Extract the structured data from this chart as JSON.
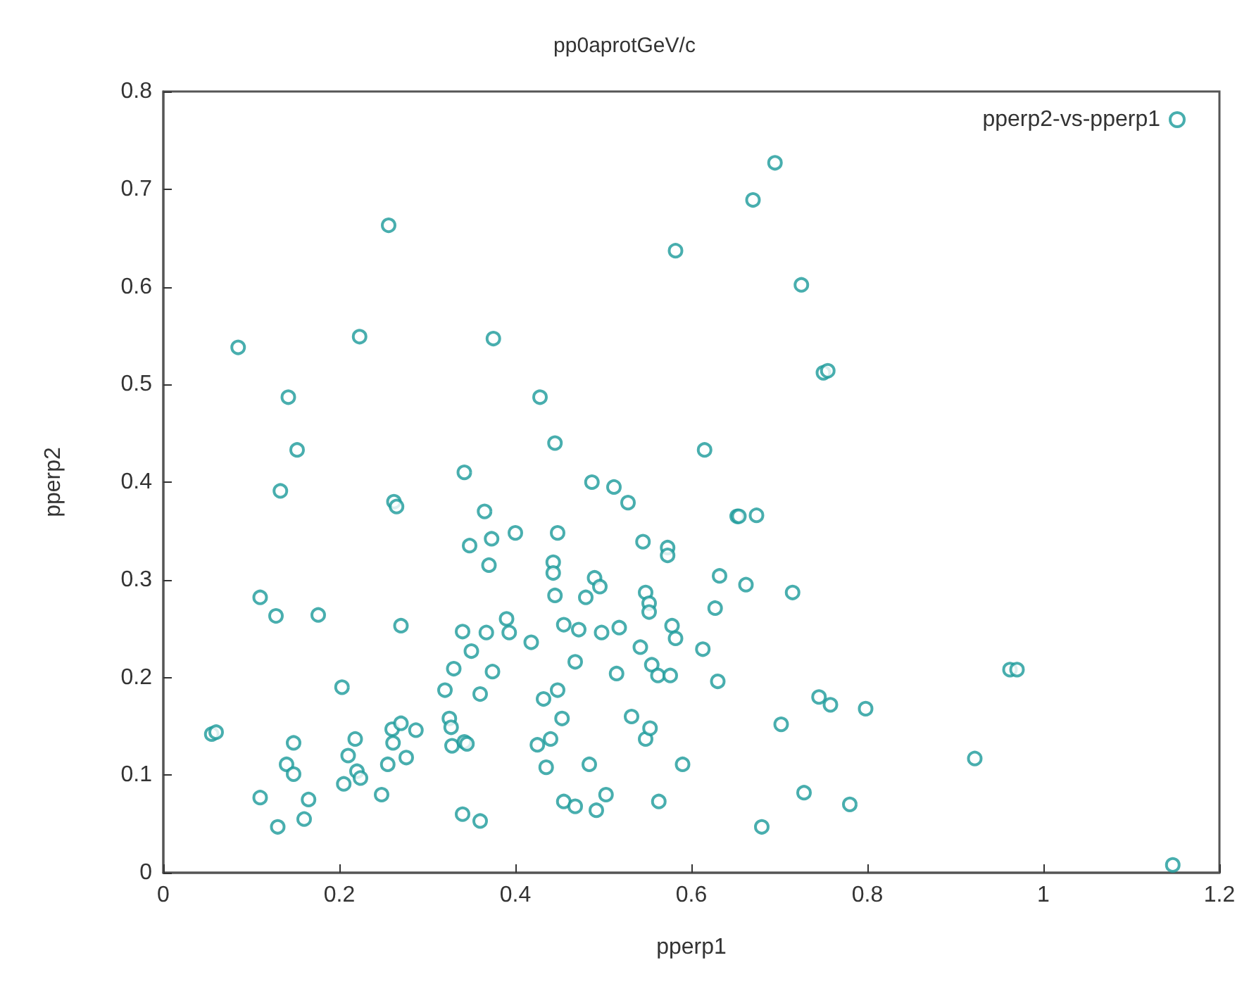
{
  "chart_data": {
    "type": "scatter",
    "title": "pp0aprotGeV/c",
    "xlabel": "pperp1",
    "ylabel": "pperp2",
    "xlim": [
      0,
      1.2
    ],
    "xticks": [
      0,
      0.2,
      0.4,
      0.6,
      0.8,
      1,
      1.2
    ],
    "ylim": [
      0,
      0.8
    ],
    "yticks": [
      0,
      0.1,
      0.2,
      0.3,
      0.4,
      0.5,
      0.6,
      0.7,
      0.8
    ],
    "grid": false,
    "legend": "top right",
    "marker": "circle",
    "series": [
      {
        "name": "pperp2-vs-pperp1",
        "color": "#1a9a9a",
        "x": [
          0.055,
          0.06,
          0.085,
          0.11,
          0.11,
          0.128,
          0.13,
          0.133,
          0.14,
          0.142,
          0.148,
          0.148,
          0.152,
          0.16,
          0.165,
          0.176,
          0.203,
          0.205,
          0.21,
          0.218,
          0.22,
          0.223,
          0.224,
          0.248,
          0.255,
          0.256,
          0.26,
          0.261,
          0.262,
          0.265,
          0.27,
          0.27,
          0.276,
          0.287,
          0.32,
          0.325,
          0.327,
          0.328,
          0.33,
          0.34,
          0.34,
          0.342,
          0.342,
          0.345,
          0.348,
          0.35,
          0.36,
          0.36,
          0.365,
          0.367,
          0.37,
          0.373,
          0.374,
          0.375,
          0.39,
          0.393,
          0.4,
          0.418,
          0.425,
          0.428,
          0.432,
          0.435,
          0.44,
          0.443,
          0.443,
          0.445,
          0.445,
          0.448,
          0.448,
          0.453,
          0.455,
          0.455,
          0.468,
          0.468,
          0.472,
          0.48,
          0.484,
          0.487,
          0.49,
          0.492,
          0.496,
          0.498,
          0.503,
          0.512,
          0.515,
          0.518,
          0.528,
          0.532,
          0.542,
          0.545,
          0.548,
          0.548,
          0.552,
          0.552,
          0.553,
          0.555,
          0.562,
          0.563,
          0.573,
          0.573,
          0.576,
          0.578,
          0.582,
          0.582,
          0.59,
          0.613,
          0.615,
          0.627,
          0.63,
          0.632,
          0.652,
          0.654,
          0.662,
          0.67,
          0.674,
          0.68,
          0.695,
          0.702,
          0.715,
          0.725,
          0.728,
          0.745,
          0.75,
          0.755,
          0.758,
          0.78,
          0.798,
          0.922,
          0.962,
          0.97,
          1.147
        ],
        "values": [
          0.142,
          0.144,
          0.538,
          0.077,
          0.282,
          0.263,
          0.047,
          0.391,
          0.111,
          0.487,
          0.133,
          0.101,
          0.433,
          0.055,
          0.075,
          0.264,
          0.19,
          0.091,
          0.12,
          0.137,
          0.104,
          0.549,
          0.097,
          0.08,
          0.111,
          0.663,
          0.147,
          0.133,
          0.38,
          0.375,
          0.253,
          0.153,
          0.118,
          0.146,
          0.187,
          0.158,
          0.149,
          0.13,
          0.209,
          0.06,
          0.247,
          0.41,
          0.134,
          0.132,
          0.335,
          0.227,
          0.183,
          0.053,
          0.37,
          0.246,
          0.315,
          0.342,
          0.206,
          0.547,
          0.26,
          0.246,
          0.348,
          0.236,
          0.131,
          0.487,
          0.178,
          0.108,
          0.137,
          0.318,
          0.307,
          0.44,
          0.284,
          0.187,
          0.348,
          0.158,
          0.254,
          0.073,
          0.068,
          0.216,
          0.249,
          0.282,
          0.111,
          0.4,
          0.302,
          0.064,
          0.293,
          0.246,
          0.08,
          0.395,
          0.204,
          0.251,
          0.379,
          0.16,
          0.231,
          0.339,
          0.287,
          0.137,
          0.276,
          0.267,
          0.148,
          0.213,
          0.202,
          0.073,
          0.333,
          0.325,
          0.202,
          0.253,
          0.24,
          0.637,
          0.111,
          0.229,
          0.433,
          0.271,
          0.196,
          0.304,
          0.365,
          0.365,
          0.295,
          0.689,
          0.366,
          0.047,
          0.727,
          0.152,
          0.287,
          0.602,
          0.082,
          0.18,
          0.512,
          0.514,
          0.172,
          0.07,
          0.168,
          0.117,
          0.208,
          0.208,
          0.008
        ]
      }
    ]
  }
}
